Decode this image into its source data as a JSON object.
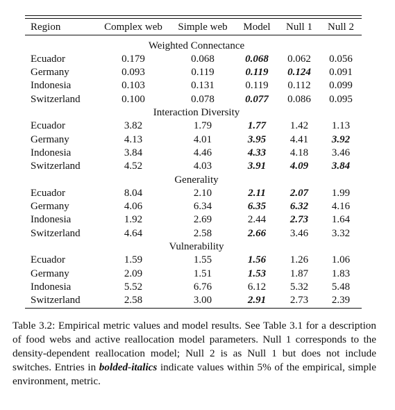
{
  "table": {
    "columns": [
      "Region",
      "Complex web",
      "Simple web",
      "Model",
      "Null 1",
      "Null 2"
    ],
    "sections": [
      {
        "title": "Weighted Connectance",
        "rows": [
          {
            "region": "Ecuador",
            "values": [
              "0.179",
              "0.068",
              "0.068",
              "0.062",
              "0.056"
            ],
            "bolded_italics": [
              2
            ]
          },
          {
            "region": "Germany",
            "values": [
              "0.093",
              "0.119",
              "0.119",
              "0.124",
              "0.091"
            ],
            "bolded_italics": [
              2,
              3
            ]
          },
          {
            "region": "Indonesia",
            "values": [
              "0.103",
              "0.131",
              "0.119",
              "0.112",
              "0.099"
            ],
            "bolded_italics": []
          },
          {
            "region": "Switzerland",
            "values": [
              "0.100",
              "0.078",
              "0.077",
              "0.086",
              "0.095"
            ],
            "bolded_italics": [
              2
            ]
          }
        ]
      },
      {
        "title": "Interaction Diversity",
        "rows": [
          {
            "region": "Ecuador",
            "values": [
              "3.82",
              "1.79",
              "1.77",
              "1.42",
              "1.13"
            ],
            "bolded_italics": [
              2
            ]
          },
          {
            "region": "Germany",
            "values": [
              "4.13",
              "4.01",
              "3.95",
              "4.41",
              "3.92"
            ],
            "bolded_italics": [
              2,
              4
            ]
          },
          {
            "region": "Indonesia",
            "values": [
              "3.84",
              "4.46",
              "4.33",
              "4.18",
              "3.46"
            ],
            "bolded_italics": [
              2
            ]
          },
          {
            "region": "Switzerland",
            "values": [
              "4.52",
              "4.03",
              "3.91",
              "4.09",
              "3.84"
            ],
            "bolded_italics": [
              2,
              3,
              4
            ]
          }
        ]
      },
      {
        "title": "Generality",
        "rows": [
          {
            "region": "Ecuador",
            "values": [
              "8.04",
              "2.10",
              "2.11",
              "2.07",
              "1.99"
            ],
            "bolded_italics": [
              2,
              3
            ]
          },
          {
            "region": "Germany",
            "values": [
              "4.06",
              "6.34",
              "6.35",
              "6.32",
              "4.16"
            ],
            "bolded_italics": [
              2,
              3
            ]
          },
          {
            "region": "Indonesia",
            "values": [
              "1.92",
              "2.69",
              "2.44",
              "2.73",
              "1.64"
            ],
            "bolded_italics": [
              3
            ]
          },
          {
            "region": "Switzerland",
            "values": [
              "4.64",
              "2.58",
              "2.66",
              "3.46",
              "3.32"
            ],
            "bolded_italics": [
              2
            ]
          }
        ]
      },
      {
        "title": "Vulnerability",
        "rows": [
          {
            "region": "Ecuador",
            "values": [
              "1.59",
              "1.55",
              "1.56",
              "1.26",
              "1.06"
            ],
            "bolded_italics": [
              2
            ]
          },
          {
            "region": "Germany",
            "values": [
              "2.09",
              "1.51",
              "1.53",
              "1.87",
              "1.83"
            ],
            "bolded_italics": [
              2
            ]
          },
          {
            "region": "Indonesia",
            "values": [
              "5.52",
              "6.76",
              "6.12",
              "5.32",
              "5.48"
            ],
            "bolded_italics": []
          },
          {
            "region": "Switzerland",
            "values": [
              "2.58",
              "3.00",
              "2.91",
              "2.73",
              "2.39"
            ],
            "bolded_italics": [
              2
            ]
          }
        ]
      }
    ]
  },
  "caption": {
    "before": "Table 3.2: Empirical metric values and model results. See Table 3.1 for a description of food webs and active reallocation model parameters. Null 1 corresponds to the density-dependent reallocation model; Null 2 is as Null 1 but does not include switches. Entries in",
    "emphasis": "bolded-italics",
    "after": "indicate values within 5% of the empirical, simple environment, metric."
  }
}
